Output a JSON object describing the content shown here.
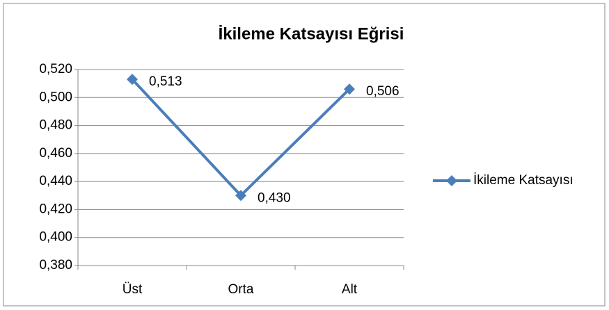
{
  "chart_data": {
    "type": "line",
    "title": "İkileme Katsayısı Eğrisi",
    "categories": [
      "Üst",
      "Orta",
      "Alt"
    ],
    "series": [
      {
        "name": "İkileme Katsayısı",
        "color": "#4a7ebb",
        "values": [
          0.513,
          0.43,
          0.506
        ],
        "value_labels": [
          "0,513",
          "0,430",
          "0,506"
        ]
      }
    ],
    "ylim": [
      0.38,
      0.52
    ],
    "yticks": [
      {
        "value": 0.38,
        "label": "0,380"
      },
      {
        "value": 0.4,
        "label": "0,400"
      },
      {
        "value": 0.42,
        "label": "0,420"
      },
      {
        "value": 0.44,
        "label": "0,440"
      },
      {
        "value": 0.46,
        "label": "0,460"
      },
      {
        "value": 0.48,
        "label": "0,480"
      },
      {
        "value": 0.5,
        "label": "0,500"
      },
      {
        "value": 0.52,
        "label": "0,520"
      }
    ],
    "grid": true,
    "legend": "right"
  }
}
